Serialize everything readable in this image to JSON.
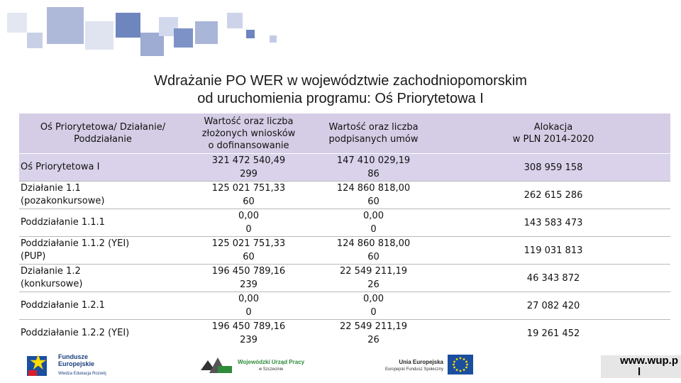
{
  "title": {
    "line1": "Wdrażanie PO WER w województwie zachodniopomorskim",
    "line2": "od uruchomienia programu: Oś Priorytetowa I"
  },
  "table": {
    "headers": [
      "Oś Priorytetowa/ Działanie/ Poddziałanie",
      "Wartość oraz liczba złożonych wniosków o dofinansowanie",
      "Wartość oraz liczba podpisanych umów",
      "Alokacja\nw PLN 2014-2020"
    ],
    "header_line1": [
      "Oś Priorytetowa/ Działanie/",
      "Wartość oraz liczba",
      "Wartość oraz liczba",
      "Alokacja"
    ],
    "header_line2": [
      "Poddziałanie",
      "złożonych wniosków",
      "podpisanych umów",
      "w PLN 2014-2020"
    ],
    "header_line3": [
      "",
      "o dofinansowanie",
      "",
      ""
    ],
    "rows": [
      {
        "name": "Oś Priorytetowa I",
        "name2": "",
        "wn_value": "321 472 540,49",
        "wn_count": "299",
        "um_value": "147 410 029,19",
        "um_count": "86",
        "alokacja": "308 959 158"
      },
      {
        "name": "Działanie 1.1",
        "name2": "(pozakonkursowe)",
        "wn_value": "125 021 751,33",
        "wn_count": "60",
        "um_value": "124 860 818,00",
        "um_count": "60",
        "alokacja": "262 615 286"
      },
      {
        "name": "Poddziałanie 1.1.1",
        "name2": "",
        "wn_value": "0,00",
        "wn_count": "0",
        "um_value": "0,00",
        "um_count": "0",
        "alokacja": "143 583 473"
      },
      {
        "name": "Poddziałanie 1.1.2 (YEI)",
        "name2": "(PUP)",
        "wn_value": "125 021 751,33",
        "wn_count": "60",
        "um_value": "124 860 818,00",
        "um_count": "60",
        "alokacja": "119 031 813"
      },
      {
        "name": "Działanie 1.2",
        "name2": "(konkursowe)",
        "wn_value": "196 450 789,16",
        "wn_count": "239",
        "um_value": "22 549 211,19",
        "um_count": "26",
        "alokacja": "46 343 872"
      },
      {
        "name": "Poddziałanie 1.2.1",
        "name2": "",
        "wn_value": "0,00",
        "wn_count": "0",
        "um_value": "0,00",
        "um_count": "0",
        "alokacja": "27 082 420"
      },
      {
        "name": "Poddziałanie 1.2.2 (YEI)",
        "name2": "",
        "wn_value": "196 450 789,16",
        "wn_count": "239",
        "um_value": "22 549 211,19",
        "um_count": "26",
        "alokacja": "19 261 452"
      }
    ]
  },
  "footer": {
    "logo1_line1": "Fundusze",
    "logo1_line2": "Europejskie",
    "logo1_line3": "Wiedza Edukacja Rozwój",
    "logo2_line1": "Wojewódzki Urząd Pracy",
    "logo2_line2": "w Szczecinie",
    "logo3_line1": "Unia Europejska",
    "logo3_line2": "Europejski Fundusz Społeczny",
    "url_line1": "www.wup.p",
    "url_line2": "l"
  },
  "colors": {
    "header_bg": "#d5cde5",
    "highlight_row_bg": "#d9d2ea",
    "eu_blue": "#1a4fa0",
    "eu_yellow": "#ffdd00",
    "wup_green": "#2e8b3a",
    "deco_blue": "#7f96c8"
  }
}
